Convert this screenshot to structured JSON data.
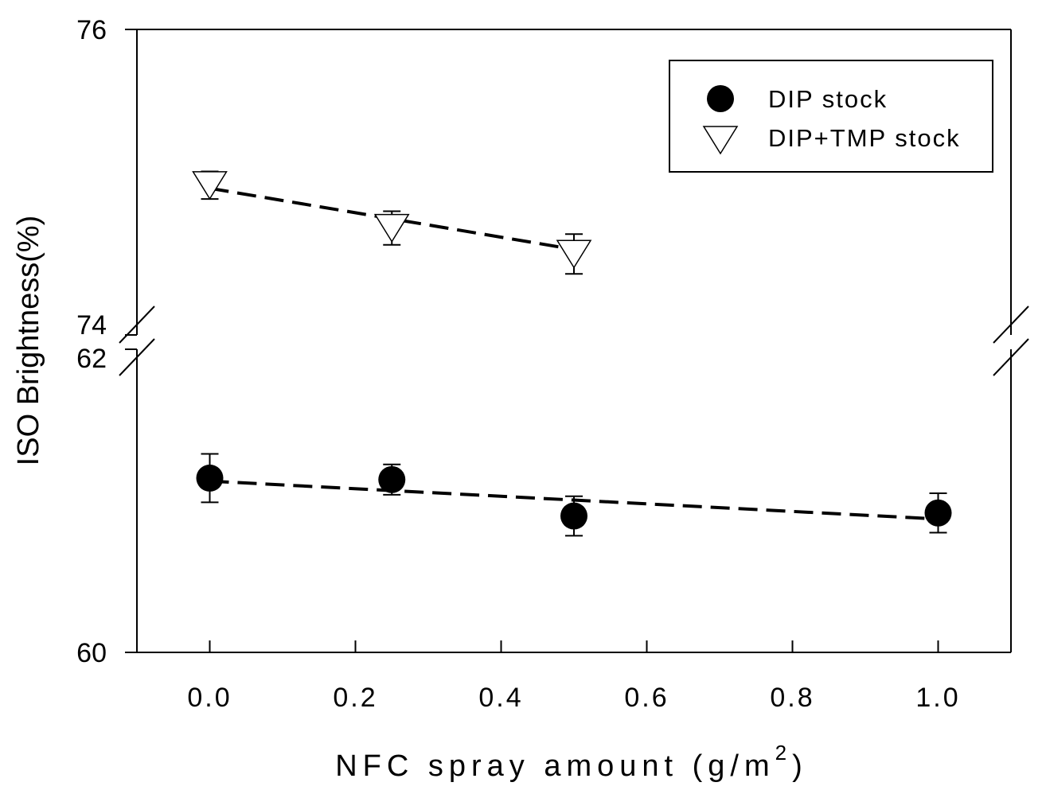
{
  "chart_data": {
    "type": "scatter",
    "xlabel": "NFC spray amount (g/m",
    "xlabel_superscript": "2",
    "xlabel_close": ")",
    "ylabel": "ISO Brightness(%)",
    "x_ticks": [
      "0.0",
      "0.2",
      "0.4",
      "0.6",
      "0.8",
      "1.0"
    ],
    "xlim": [
      -0.1,
      1.1
    ],
    "y_broken_axis": true,
    "y_upper_segment": {
      "ylim": [
        74,
        76
      ],
      "tick_labels": [
        "74",
        "76"
      ]
    },
    "y_lower_segment": {
      "ylim": [
        60,
        62
      ],
      "tick_labels": [
        "60",
        "62"
      ]
    },
    "legend_position": "top-right",
    "series": [
      {
        "name": "DIP stock",
        "marker": "filled-circle",
        "color": "#000000",
        "segment": "lower",
        "points": [
          {
            "x": 0.0,
            "y": 61.15,
            "err": 0.16
          },
          {
            "x": 0.25,
            "y": 61.14,
            "err": 0.1
          },
          {
            "x": 0.5,
            "y": 60.9,
            "err": 0.13
          },
          {
            "x": 1.0,
            "y": 60.92,
            "err": 0.13
          }
        ],
        "trend": {
          "x": [
            0.0,
            1.0
          ],
          "y": [
            61.13,
            60.88
          ]
        }
      },
      {
        "name": "DIP+TMP stock",
        "marker": "open-triangle-down",
        "color": "#000000",
        "segment": "upper",
        "points": [
          {
            "x": 0.0,
            "y": 74.98,
            "err": 0.09
          },
          {
            "x": 0.25,
            "y": 74.7,
            "err": 0.11
          },
          {
            "x": 0.5,
            "y": 74.53,
            "err": 0.13
          }
        ],
        "trend": {
          "x": [
            0.0,
            0.5
          ],
          "y": [
            74.96,
            74.56
          ]
        }
      }
    ]
  }
}
